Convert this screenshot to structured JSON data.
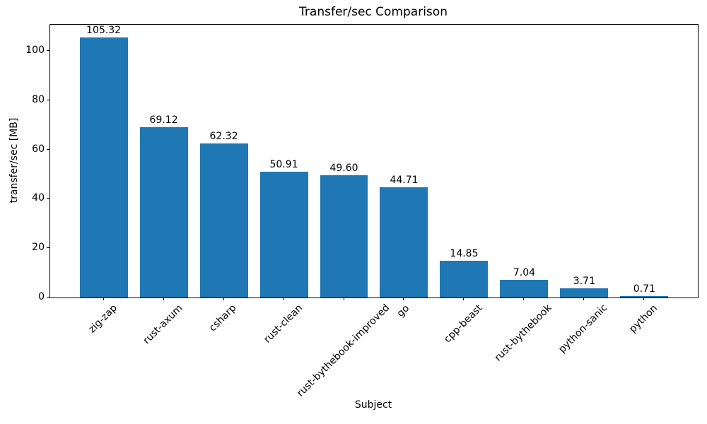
{
  "chart_data": {
    "type": "bar",
    "title": "Transfer/sec Comparison",
    "xlabel": "Subject",
    "ylabel": "transfer/sec [MB]",
    "categories": [
      "zig-zap",
      "rust-axum",
      "csharp",
      "rust-clean",
      "rust-bythebook-improved",
      "go",
      "cpp-beast",
      "rust-bythebook",
      "python-sanic",
      "python"
    ],
    "values": [
      105.32,
      69.12,
      62.32,
      50.91,
      49.6,
      44.71,
      14.85,
      7.04,
      3.71,
      0.71
    ],
    "bar_value_labels": [
      "105.32",
      "69.12",
      "62.32",
      "50.91",
      "49.60",
      "44.71",
      "14.85",
      "7.04",
      "3.71",
      "0.71"
    ],
    "yticks": [
      0,
      20,
      40,
      60,
      80,
      100
    ],
    "ytick_labels": [
      "0",
      "20",
      "40",
      "60",
      "80",
      "100"
    ],
    "ylim": [
      0,
      110.59
    ],
    "bar_color": "#1f77b4",
    "grid": false,
    "legend": "none",
    "x_tick_rotation_deg": 45,
    "bar_width_fraction": 0.8
  }
}
